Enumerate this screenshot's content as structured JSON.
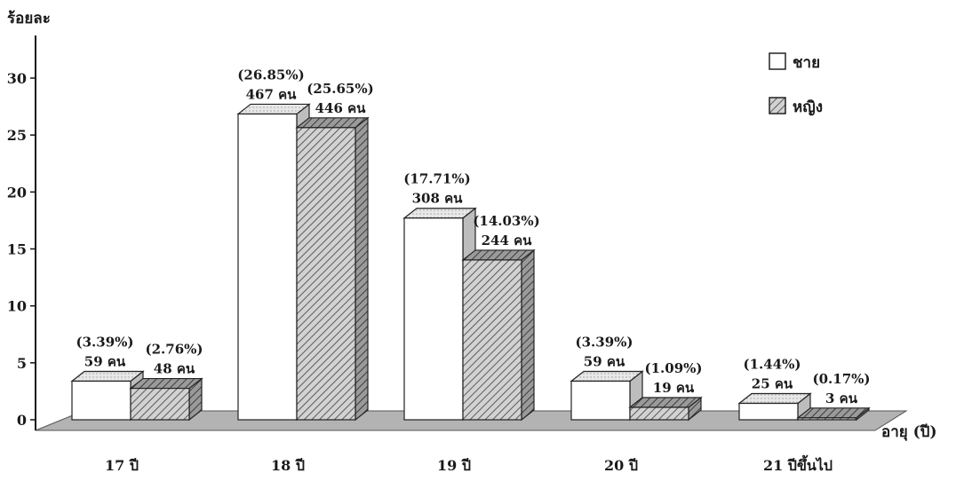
{
  "chart_data": {
    "type": "bar",
    "ylabel": "ร้อยละ",
    "xlabel": "อายุ (ปี)",
    "categories": [
      "17 ปี",
      "18 ปี",
      "19 ปี",
      "20 ปี",
      "21 ปีขึ้นไป"
    ],
    "ylim": [
      0,
      30
    ],
    "yticks": [
      0,
      5,
      10,
      15,
      20,
      25,
      30
    ],
    "ytick_labels": [
      "0",
      "5",
      "10",
      "15",
      "20",
      "25",
      "30"
    ],
    "legend_position": "top-right",
    "series": [
      {
        "name": "ชาย",
        "fill": "white",
        "values": [
          3.39,
          26.85,
          17.71,
          3.39,
          1.44
        ],
        "percent_labels": [
          "(3.39%)",
          "(26.85%)",
          "(17.71%)",
          "(3.39%)",
          "(1.44%)"
        ],
        "count_labels": [
          "59 คน",
          "467 คน",
          "308 คน",
          "59 คน",
          "25 คน"
        ]
      },
      {
        "name": "หญิง",
        "fill": "hatched",
        "values": [
          2.76,
          25.65,
          14.03,
          1.09,
          0.17
        ],
        "percent_labels": [
          "(2.76%)",
          "(25.65%)",
          "(14.03%)",
          "(1.09%)",
          "(0.17%)"
        ],
        "count_labels": [
          "48 คน",
          "446 คน",
          "244 คน",
          "19 คน",
          "3 คน"
        ]
      }
    ]
  },
  "colors": {
    "floor": "#b3b3b3",
    "floor_stroke": "#555555",
    "bar_white": "#ffffff",
    "bar_hatch_bg": "#d2d2d2",
    "hatch_line": "#5a5a5a",
    "bar_top_male": "#e6e6e6",
    "bar_side_male": "#bdbdbd",
    "bar_side_female": "#8c8c8c",
    "stroke": "#222222"
  }
}
